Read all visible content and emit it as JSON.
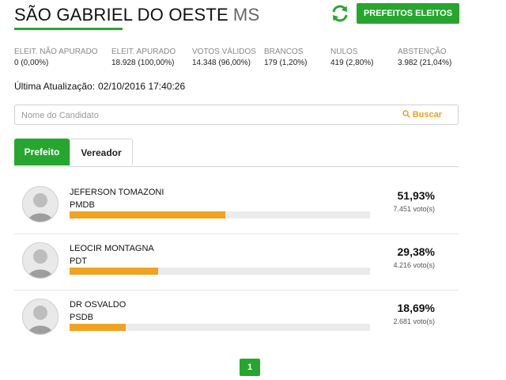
{
  "header": {
    "city": "SÃO GABRIEL DO OESTE",
    "state": "MS",
    "elected_button": "PREFEITOS ELEITOS",
    "refresh_icon": "refresh-icon",
    "accent_color": "#27a62f"
  },
  "stats": [
    {
      "label": "ELEIT. NÃO APURADO",
      "value": "0 (0,00%)"
    },
    {
      "label": "ELEIT. APURADO",
      "value": "18.928 (100,00%)"
    },
    {
      "label": "VOTOS VÁLIDOS",
      "value": "14.348 (96,00%)"
    },
    {
      "label": "BRANCOS",
      "value": "179 (1,20%)"
    },
    {
      "label": "NULOS",
      "value": "419 (2,80%)"
    },
    {
      "label": "ABSTENÇÃO",
      "value": "3.982 (21,04%)"
    }
  ],
  "update": {
    "label": "Última Atualização:",
    "timestamp": "02/10/2016 17:40:26"
  },
  "search": {
    "placeholder": "Nome do Candidato",
    "button_label": "Buscar",
    "button_icon": "search-icon"
  },
  "tabs": [
    {
      "label": "Prefeito",
      "active": true
    },
    {
      "label": "Vereador",
      "active": false
    }
  ],
  "candidates": [
    {
      "name": "JEFERSON TOMAZONI",
      "party": "PMDB",
      "percent_text": "51,93%",
      "percent": 51.93,
      "votes": "7.451 voto(s)"
    },
    {
      "name": "LEOCIR MONTAGNA",
      "party": "PDT",
      "percent_text": "29,38%",
      "percent": 29.38,
      "votes": "4.216 voto(s)"
    },
    {
      "name": "DR OSVALDO",
      "party": "PSDB",
      "percent_text": "18,69%",
      "percent": 18.69,
      "votes": "2.681 voto(s)"
    }
  ],
  "bar_color": "#f1a21f",
  "pagination": {
    "current": "1"
  }
}
